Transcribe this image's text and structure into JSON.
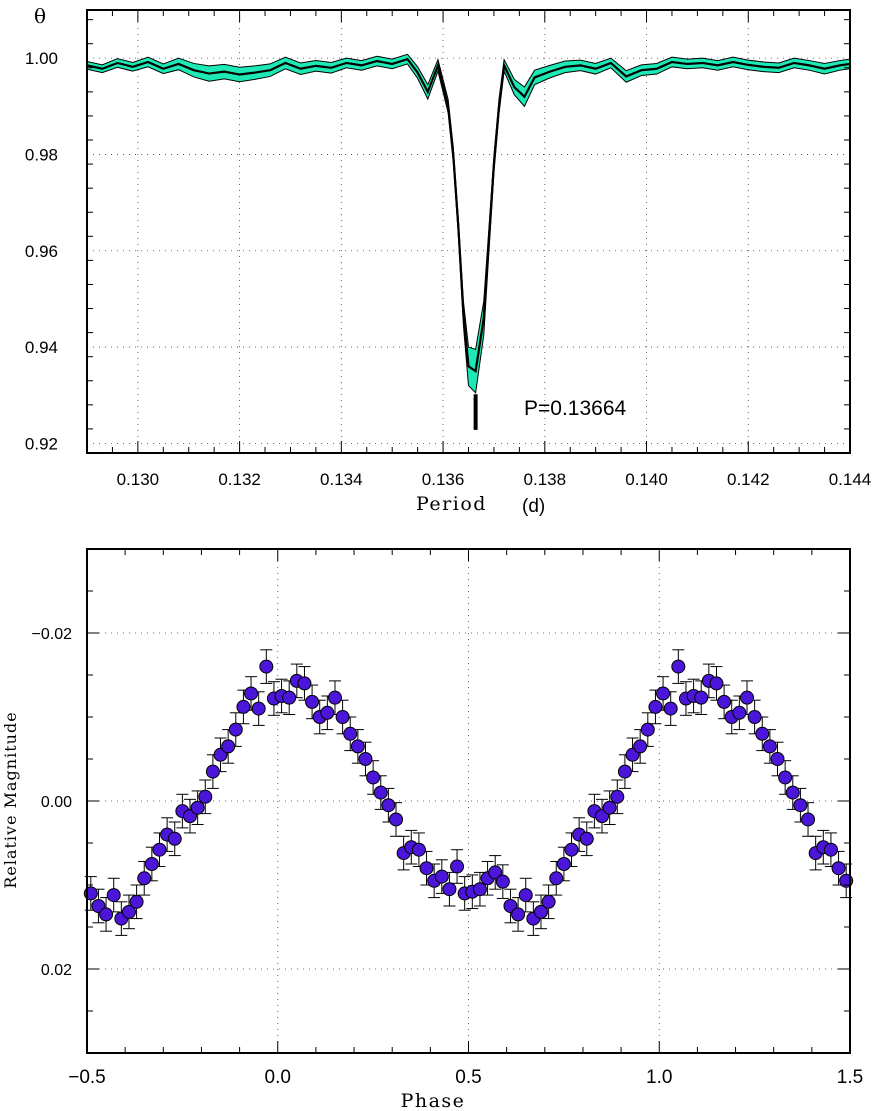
{
  "chart_data": [
    {
      "type": "line",
      "panel": "periodogram",
      "ylabel": "θ",
      "xlabel": "Period",
      "xunit": "(d)",
      "xlim": [
        0.129,
        0.144
      ],
      "ylim": [
        0.918,
        1.01
      ],
      "xticks": [
        0.13,
        0.132,
        0.134,
        0.136,
        0.138,
        0.14,
        0.142,
        0.144
      ],
      "xtick_labels": [
        "0.130",
        "0.132",
        "0.134",
        "0.136",
        "0.138",
        "0.140",
        "0.142",
        "0.144"
      ],
      "yticks": [
        0.92,
        0.94,
        0.96,
        0.98,
        1.0
      ],
      "ytick_labels": [
        "0.92",
        "0.94",
        "0.96",
        "0.98",
        "1.00"
      ],
      "grid": true,
      "band_color": "#1de9b6",
      "line_color": "#000000",
      "annotation": "P=0.13664",
      "best_period": 0.13664,
      "series": [
        {
          "x": [
            0.129,
            0.1293,
            0.1296,
            0.1299,
            0.1302,
            0.1305,
            0.1308,
            0.1311,
            0.1314,
            0.1317,
            0.132,
            0.1323,
            0.1326,
            0.1329,
            0.1332,
            0.1335,
            0.1338,
            0.1341,
            0.1344,
            0.1347,
            0.135,
            0.1353,
            0.1355,
            0.1357,
            0.1359,
            0.1361,
            0.1362,
            0.1363,
            0.1364,
            0.1365,
            0.13664,
            0.1368,
            0.1369,
            0.137,
            0.1371,
            0.1372,
            0.1374,
            0.1376,
            0.1378,
            0.1381,
            0.1384,
            0.1387,
            0.139,
            0.1393,
            0.1396,
            0.1399,
            0.1402,
            0.1405,
            0.1408,
            0.1411,
            0.1414,
            0.1417,
            0.142,
            0.1423,
            0.1426,
            0.1429,
            0.1432,
            0.1435,
            0.1438,
            0.144
          ],
          "y": [
            0.9985,
            0.9978,
            0.999,
            0.9982,
            0.9992,
            0.9978,
            0.9988,
            0.9975,
            0.9968,
            0.9972,
            0.9966,
            0.997,
            0.9975,
            0.999,
            0.9978,
            0.9984,
            0.998,
            0.999,
            0.9985,
            0.9994,
            0.9988,
            0.9998,
            0.997,
            0.993,
            0.9985,
            0.99,
            0.98,
            0.965,
            0.947,
            0.936,
            0.935,
            0.946,
            0.962,
            0.978,
            0.99,
            0.9985,
            0.994,
            0.992,
            0.996,
            0.9972,
            0.9982,
            0.9985,
            0.9978,
            0.999,
            0.9962,
            0.9975,
            0.9978,
            0.9992,
            0.9988,
            0.999,
            0.9985,
            0.9992,
            0.9986,
            0.9982,
            0.998,
            0.999,
            0.9985,
            0.9978,
            0.9985,
            0.9988
          ],
          "band_halfwidth": [
            0.0008,
            0.0008,
            0.0009,
            0.0009,
            0.001,
            0.001,
            0.0012,
            0.0014,
            0.0016,
            0.0015,
            0.0015,
            0.0014,
            0.0013,
            0.0012,
            0.0012,
            0.0011,
            0.0011,
            0.001,
            0.001,
            0.001,
            0.001,
            0.001,
            0.0012,
            0.0015,
            0.0012,
            0.0014,
            0.0016,
            0.0018,
            0.0025,
            0.004,
            0.0045,
            0.0035,
            0.0025,
            0.0018,
            0.0015,
            0.0012,
            0.0016,
            0.002,
            0.0015,
            0.0013,
            0.0012,
            0.0011,
            0.0011,
            0.001,
            0.0012,
            0.0011,
            0.0011,
            0.001,
            0.001,
            0.001,
            0.001,
            0.001,
            0.001,
            0.001,
            0.001,
            0.001,
            0.001,
            0.0011,
            0.001,
            0.001
          ]
        }
      ]
    },
    {
      "type": "scatter",
      "panel": "phase-curve",
      "xlabel": "Phase",
      "ylabel": "Relative Magnitude",
      "xlim": [
        -0.5,
        1.5
      ],
      "ylim": [
        0.03,
        -0.03
      ],
      "y_inverted": true,
      "xticks": [
        -0.5,
        0.0,
        0.5,
        1.0,
        1.5
      ],
      "xtick_labels": [
        "−0.5",
        "0.0",
        "0.5",
        "1.0",
        "1.5"
      ],
      "yticks": [
        -0.02,
        0.0,
        0.02
      ],
      "ytick_labels": [
        "−0.02",
        "0.00",
        "0.02"
      ],
      "grid": true,
      "marker_color": "#4b16d9",
      "errorbar_color": "#000000",
      "series": [
        {
          "x": [
            -0.49,
            -0.47,
            -0.45,
            -0.43,
            -0.41,
            -0.39,
            -0.37,
            -0.35,
            -0.33,
            -0.31,
            -0.29,
            -0.27,
            -0.25,
            -0.23,
            -0.21,
            -0.19,
            -0.17,
            -0.15,
            -0.13,
            -0.11,
            -0.09,
            -0.07,
            -0.05,
            -0.03,
            -0.01,
            0.01,
            0.03,
            0.05,
            0.07,
            0.09,
            0.11,
            0.13,
            0.15,
            0.17,
            0.19,
            0.21,
            0.23,
            0.25,
            0.27,
            0.29,
            0.31,
            0.33,
            0.35,
            0.37,
            0.39,
            0.41,
            0.43,
            0.45,
            0.47,
            0.49,
            0.51,
            0.53,
            0.55,
            0.57,
            0.59,
            0.61,
            0.63,
            0.65,
            0.67,
            0.69,
            0.71,
            0.73,
            0.75,
            0.77,
            0.79,
            0.81,
            0.83,
            0.85,
            0.87,
            0.89,
            0.91,
            0.93,
            0.95,
            0.97,
            0.99,
            1.01,
            1.03,
            1.05,
            1.07,
            1.09,
            1.11,
            1.13,
            1.15,
            1.17,
            1.19,
            1.21,
            1.23,
            1.25,
            1.27,
            1.29,
            1.31,
            1.33,
            1.35,
            1.37,
            1.39,
            1.41,
            1.43,
            1.45,
            1.47,
            1.49
          ],
          "y": [
            0.011,
            0.0125,
            0.0135,
            0.0112,
            0.014,
            0.0132,
            0.012,
            0.0092,
            0.0075,
            0.0058,
            0.004,
            0.0045,
            0.0012,
            0.0018,
            0.0008,
            -0.0005,
            -0.0035,
            -0.0055,
            -0.0065,
            -0.0085,
            -0.0112,
            -0.0128,
            -0.011,
            -0.016,
            -0.0122,
            -0.0125,
            -0.0123,
            -0.0143,
            -0.014,
            -0.0118,
            -0.01,
            -0.0105,
            -0.0123,
            -0.01,
            -0.008,
            -0.0065,
            -0.005,
            -0.0028,
            -0.001,
            0.0005,
            0.0022,
            0.0062,
            0.0055,
            0.0058,
            0.008,
            0.0095,
            0.009,
            0.0105,
            0.0078,
            0.011,
            0.0108,
            0.0105,
            0.0092,
            0.0085,
            0.0096,
            0.0125,
            0.0135,
            0.0112,
            0.014,
            0.0132,
            0.012,
            0.0092,
            0.0075,
            0.0058,
            0.004,
            0.0045,
            0.0012,
            0.0018,
            0.0008,
            -0.0005,
            -0.0035,
            -0.0055,
            -0.0065,
            -0.0085,
            -0.0112,
            -0.0128,
            -0.011,
            -0.016,
            -0.0122,
            -0.0125,
            -0.0123,
            -0.0143,
            -0.014,
            -0.0118,
            -0.01,
            -0.0105,
            -0.0123,
            -0.01,
            -0.008,
            -0.0065,
            -0.005,
            -0.0028,
            -0.001,
            0.0005,
            0.0022,
            0.0062,
            0.0055,
            0.0058,
            0.008,
            0.0095
          ],
          "err": [
            0.002,
            0.002,
            0.002,
            0.002,
            0.002,
            0.002,
            0.002,
            0.002,
            0.002,
            0.002,
            0.002,
            0.002,
            0.002,
            0.002,
            0.002,
            0.002,
            0.002,
            0.002,
            0.002,
            0.002,
            0.002,
            0.002,
            0.002,
            0.002,
            0.002,
            0.002,
            0.002,
            0.002,
            0.002,
            0.002,
            0.002,
            0.002,
            0.002,
            0.002,
            0.002,
            0.002,
            0.002,
            0.002,
            0.002,
            0.002,
            0.002,
            0.002,
            0.002,
            0.002,
            0.002,
            0.002,
            0.002,
            0.002,
            0.002,
            0.002,
            0.002,
            0.002,
            0.002,
            0.002,
            0.002,
            0.002,
            0.002,
            0.002,
            0.002,
            0.002,
            0.002,
            0.002,
            0.002,
            0.002,
            0.002,
            0.002,
            0.002,
            0.002,
            0.002,
            0.002,
            0.002,
            0.002,
            0.002,
            0.002,
            0.002,
            0.002,
            0.002,
            0.002,
            0.002,
            0.002,
            0.002,
            0.002,
            0.002,
            0.002,
            0.002,
            0.002,
            0.002,
            0.002,
            0.002,
            0.002,
            0.002,
            0.002,
            0.002,
            0.002,
            0.002,
            0.002,
            0.002,
            0.002,
            0.002,
            0.002
          ]
        }
      ]
    }
  ]
}
